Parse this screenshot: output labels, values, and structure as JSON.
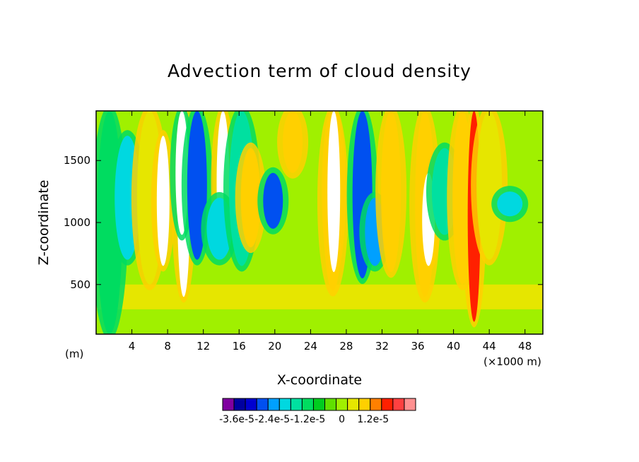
{
  "chart_data": {
    "type": "heatmap",
    "title": "Advection term of cloud density",
    "xlabel": "X-coordinate",
    "ylabel": "Z-coordinate",
    "x_unit_left": "(m)",
    "x_unit_right": "(×1000 m)",
    "xlim": [
      0,
      50
    ],
    "ylim": [
      100,
      1900
    ],
    "xticks": [
      4,
      8,
      12,
      16,
      20,
      24,
      28,
      32,
      36,
      40,
      44,
      48
    ],
    "xtick_labels": [
      "4",
      "8",
      "12",
      "16",
      "20",
      "24",
      "28",
      "32",
      "36",
      "40",
      "44",
      "48"
    ],
    "yticks": [
      500,
      1000,
      1500
    ],
    "ytick_labels": [
      "500",
      "1000",
      "1500"
    ],
    "colorbar": {
      "levels": [
        -3.6e-05,
        -3e-05,
        -2.4e-05,
        -1.8e-05,
        -1.2e-05,
        -6e-06,
        0,
        6e-06,
        1.2e-05,
        1.8e-05
      ],
      "labels": [
        "-3.6e-5",
        "-2.4e-5",
        "-1.2e-5",
        "0",
        "1.2e-5"
      ],
      "colors": [
        "#8000a0",
        "#0000a0",
        "#0000d0",
        "#0050f0",
        "#00a0ff",
        "#00d8e0",
        "#00e0a0",
        "#00dc60",
        "#00cc20",
        "#60e000",
        "#a0f000",
        "#e6e600",
        "#ffd000",
        "#ff8000",
        "#ff2000",
        "#ff4040",
        "#ff9090"
      ]
    },
    "columns": [
      {
        "x": 1.5,
        "z0": 100,
        "z1": 1900,
        "v": -0.5
      },
      {
        "x": 3.5,
        "z0": 700,
        "z1": 1700,
        "v": -1.3
      },
      {
        "x": 6.0,
        "z0": 500,
        "z1": 1900,
        "v": 1.4
      },
      {
        "x": 7.5,
        "z0": 650,
        "z1": 1700,
        "v": 3.0
      },
      {
        "x": 9.8,
        "z0": 400,
        "z1": 1900,
        "v": 3.2
      },
      {
        "x": 9.6,
        "z0": 900,
        "z1": 1900,
        "v": -3.2
      },
      {
        "x": 11.3,
        "z0": 700,
        "z1": 1900,
        "v": -2.4
      },
      {
        "x": 14.2,
        "z0": 750,
        "z1": 1900,
        "v": 3.2
      },
      {
        "x": 13.8,
        "z0": 700,
        "z1": 1200,
        "v": -1.2
      },
      {
        "x": 16.3,
        "z0": 650,
        "z1": 1900,
        "v": -1.0
      },
      {
        "x": 17.3,
        "z0": 800,
        "z1": 1600,
        "v": 1.8
      },
      {
        "x": 19.8,
        "z0": 950,
        "z1": 1400,
        "v": -2.4
      },
      {
        "x": 22.0,
        "z0": 1400,
        "z1": 1900,
        "v": 1.6
      },
      {
        "x": 26.5,
        "z0": 450,
        "z1": 1900,
        "v": 2.0
      },
      {
        "x": 26.6,
        "z0": 600,
        "z1": 1900,
        "v": 3.2
      },
      {
        "x": 29.8,
        "z0": 550,
        "z1": 1900,
        "v": -2.4
      },
      {
        "x": 31.2,
        "z0": 650,
        "z1": 1200,
        "v": -2.0
      },
      {
        "x": 33.0,
        "z0": 600,
        "z1": 1900,
        "v": 1.6
      },
      {
        "x": 36.8,
        "z0": 400,
        "z1": 1900,
        "v": 1.8
      },
      {
        "x": 37.2,
        "z0": 650,
        "z1": 1400,
        "v": 3.2
      },
      {
        "x": 39.0,
        "z0": 900,
        "z1": 1600,
        "v": -1.0
      },
      {
        "x": 41.0,
        "z0": 500,
        "z1": 1900,
        "v": 1.8
      },
      {
        "x": 42.3,
        "z0": 200,
        "z1": 1900,
        "v": 2.6
      },
      {
        "x": 44.0,
        "z0": 700,
        "z1": 1900,
        "v": 1.5
      },
      {
        "x": 46.3,
        "z0": 1050,
        "z1": 1250,
        "v": -1.4
      }
    ]
  }
}
